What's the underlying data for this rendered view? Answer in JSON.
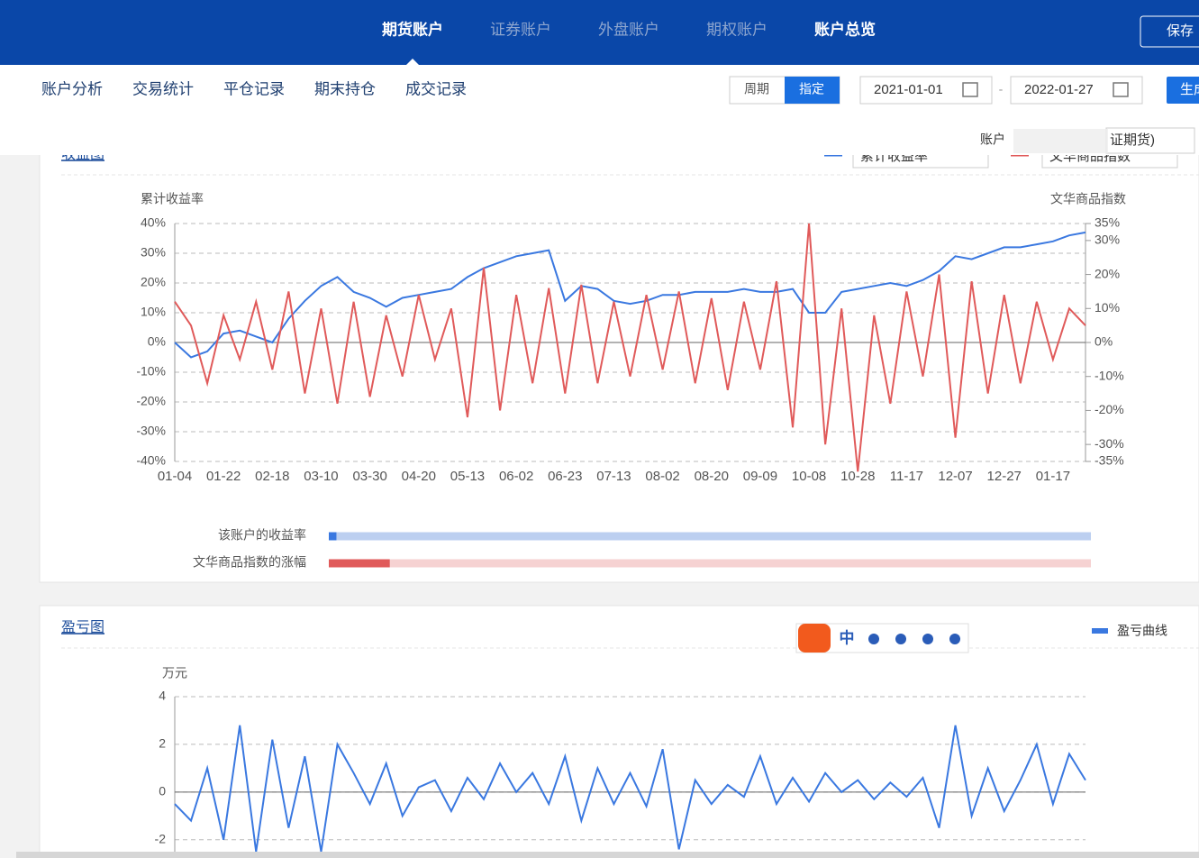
{
  "nav": {
    "tabs": [
      "期货账户",
      "证券账户",
      "外盘账户",
      "期权账户",
      "账户总览"
    ],
    "save": "保存"
  },
  "subnav": {
    "items": [
      "账户分析",
      "交易统计",
      "平仓记录",
      "期末持仓",
      "成交记录"
    ],
    "toggle": [
      "周期",
      "指定"
    ],
    "start": "2021-01-01",
    "sep": "-",
    "end": "2022-01-27",
    "generate": "生成",
    "account_label": "账户",
    "account_value": "证期货)"
  },
  "ime": {
    "label": "中"
  },
  "chart_data": [
    {
      "type": "line",
      "title": "收益图",
      "y_label": "累计收益率",
      "y2_label": "文华商品指数",
      "categories": [
        "01-04",
        null,
        null,
        "01-22",
        null,
        null,
        "02-18",
        null,
        null,
        "03-10",
        null,
        null,
        "03-30",
        null,
        null,
        "04-20",
        null,
        null,
        "05-13",
        null,
        null,
        "06-02",
        null,
        null,
        "06-23",
        null,
        null,
        "07-13",
        null,
        null,
        "08-02",
        null,
        null,
        "08-20",
        null,
        null,
        "09-09",
        null,
        null,
        "10-08",
        null,
        null,
        "10-28",
        null,
        null,
        "11-17",
        null,
        null,
        "12-07",
        null,
        null,
        "12-27",
        null,
        null,
        "01-17",
        null,
        null
      ],
      "series": [
        {
          "name": "累计收益率",
          "color": "#3a78e0",
          "values": [
            0,
            -5,
            -3,
            3,
            4,
            2,
            0,
            8,
            14,
            19,
            22,
            17,
            15,
            12,
            15,
            16,
            17,
            18,
            22,
            25,
            27,
            29,
            30,
            31,
            14,
            19,
            18,
            14,
            13,
            14,
            16,
            16,
            17,
            17,
            17,
            18,
            17,
            17,
            18,
            10,
            10,
            17,
            18,
            19,
            20,
            19,
            21,
            24,
            29,
            28,
            30,
            32,
            32,
            33,
            34,
            36,
            37
          ]
        },
        {
          "name": "文华商品指数",
          "color": "#e05a5a",
          "axis": "y2",
          "values": [
            12,
            5,
            -12,
            8,
            -5,
            12,
            -8,
            15,
            -15,
            10,
            -18,
            12,
            -16,
            8,
            -10,
            14,
            -5,
            10,
            -22,
            22,
            -20,
            14,
            -12,
            16,
            -15,
            17,
            -12,
            12,
            -10,
            14,
            -8,
            15,
            -12,
            13,
            -14,
            12,
            -8,
            18,
            -25,
            35,
            -30,
            10,
            -38,
            8,
            -18,
            15,
            -10,
            20,
            -28,
            18,
            -15,
            14,
            -12,
            12,
            -5,
            10,
            5
          ]
        }
      ],
      "ylim": [
        -40,
        40
      ],
      "yticks": [
        {
          "value": 40,
          "label": "40%"
        },
        {
          "value": 30,
          "label": "30%"
        },
        {
          "value": 20,
          "label": "20%"
        },
        {
          "value": 10,
          "label": "10%"
        },
        {
          "value": 0,
          "label": "0%"
        },
        {
          "value": -10,
          "label": "-10%"
        },
        {
          "value": -20,
          "label": "-20%"
        },
        {
          "value": -30,
          "label": "-30%"
        },
        {
          "value": -40,
          "label": "-40%"
        }
      ],
      "y2lim": [
        -35,
        35
      ],
      "y2ticks": [
        {
          "value": 35,
          "label": "35%"
        },
        {
          "value": 30,
          "label": "30%"
        },
        {
          "value": 20,
          "label": "20%"
        },
        {
          "value": 10,
          "label": "10%"
        },
        {
          "value": 0,
          "label": "0%"
        },
        {
          "value": -10,
          "label": "-10%"
        },
        {
          "value": -20,
          "label": "-20%"
        },
        {
          "value": -30,
          "label": "-30%"
        },
        {
          "value": -35,
          "label": "-35%"
        }
      ],
      "grid": true
    },
    {
      "type": "progress",
      "categories": [
        "该账户的收益率",
        "文华商品指数的涨幅"
      ],
      "values": [
        1,
        8
      ],
      "colors": [
        "#3a78e0",
        "#e05a5a"
      ],
      "track_colors": [
        "#bccff0",
        "#f6d2d2"
      ],
      "xlim": [
        0,
        100
      ]
    },
    {
      "type": "line",
      "title": "盈亏图",
      "y_label": "万元",
      "categories": [
        null,
        null,
        null,
        null,
        null,
        null,
        null,
        null,
        null,
        null,
        null,
        null,
        null,
        null,
        null,
        null,
        null,
        null,
        null,
        null,
        null,
        null,
        null,
        null,
        null,
        null,
        null,
        null,
        null,
        null,
        null,
        null,
        null,
        null,
        null,
        null,
        null,
        null,
        null,
        null,
        null,
        null,
        null,
        null,
        null,
        null,
        null,
        null,
        null,
        null,
        null,
        null,
        null,
        null,
        null,
        null,
        null
      ],
      "series": [
        {
          "name": "盈亏曲线",
          "color": "#3a78e0",
          "values": [
            -0.5,
            -1.2,
            1,
            -2,
            2.8,
            -2.5,
            2.2,
            -1.5,
            1.5,
            -2.5,
            2,
            0.8,
            -0.5,
            1.2,
            -1,
            0.2,
            0.5,
            -0.8,
            0.6,
            -0.3,
            1.2,
            0,
            0.8,
            -0.5,
            1.5,
            -1.2,
            1,
            -0.5,
            0.8,
            -0.6,
            1.8,
            -2.4,
            0.5,
            -0.5,
            0.3,
            -0.2,
            1.5,
            -0.5,
            0.6,
            -0.4,
            0.8,
            0,
            0.5,
            -0.3,
            0.4,
            -0.2,
            0.6,
            -1.5,
            2.8,
            -1,
            1,
            -0.8,
            0.5,
            2,
            -0.5,
            1.6,
            0.5
          ]
        }
      ],
      "ylim": [
        -2.5,
        4
      ],
      "yticks": [
        4,
        2,
        0,
        -2
      ],
      "grid": true
    }
  ]
}
